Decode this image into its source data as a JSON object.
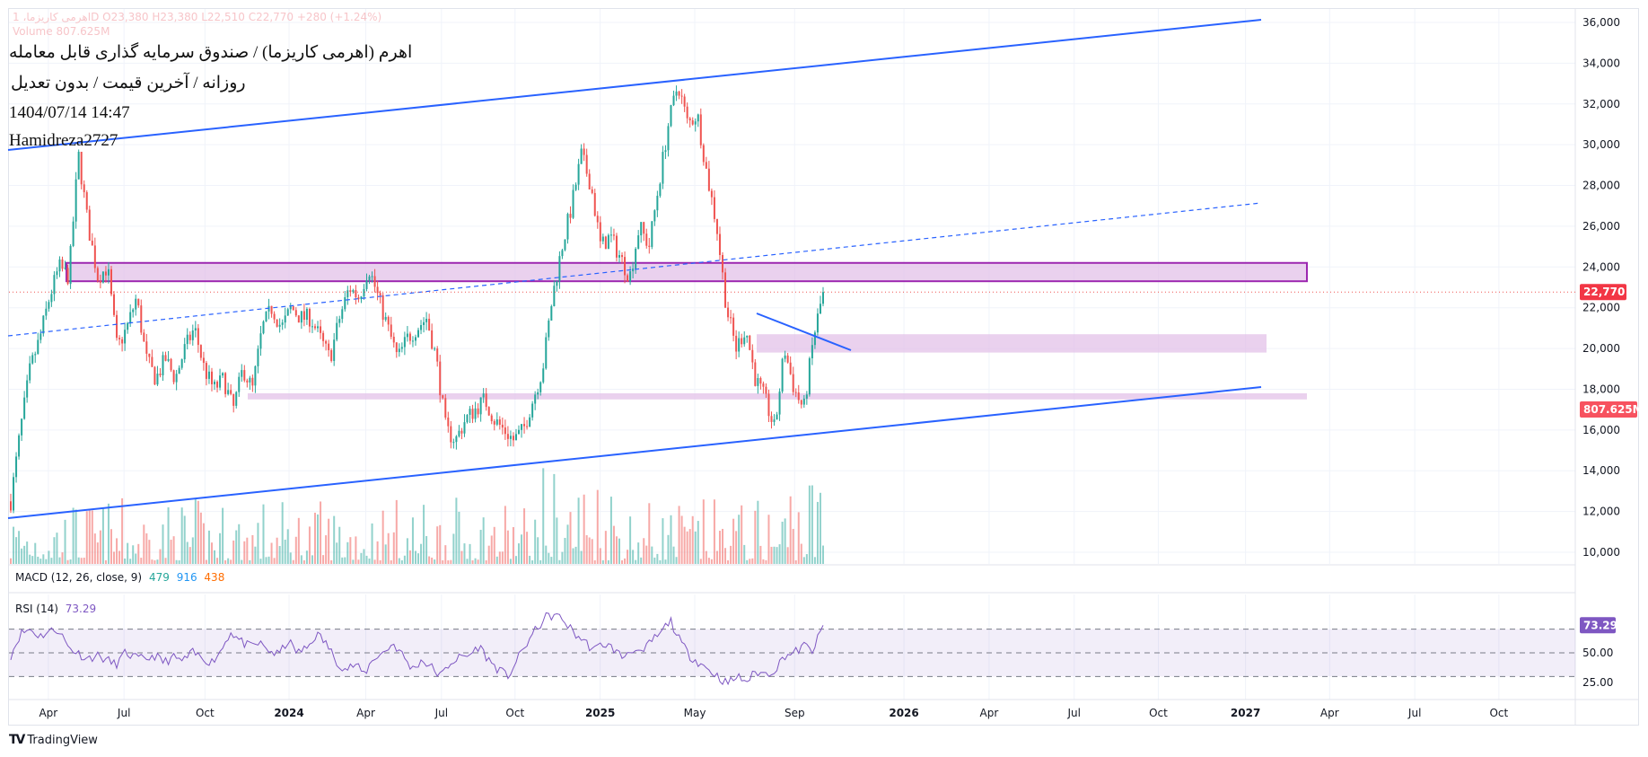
{
  "header": {
    "ohlc_line": "اهرمی کاریزما، 1D  O23,380  H23,380  L22,510  C22,770  +280 (+1.24%)",
    "volume_line": "Volume 807.625M",
    "title": "اهرم (اهرمی کاریزما) / صندوق سرمایه گذاری قابل معامله",
    "subtitle": "روزانه / آخرین قیمت / بدون تعدیل",
    "datetime": "1404/07/14 14:47",
    "author": "Hamidreza2727"
  },
  "indicators": {
    "macd": {
      "label": "MACD (12, 26, close, 9)",
      "v1": "479",
      "v2": "916",
      "v3": "438"
    },
    "rsi": {
      "label": "RSI (14)",
      "value": "73.29"
    }
  },
  "colors": {
    "up": "#26a69a",
    "down": "#ef5350",
    "line": "#2962ff",
    "rsi": "#7e57c2",
    "zone": "#e1bee7",
    "box": "#9c27b0"
  },
  "chart_data": {
    "type": "candlestick",
    "price_axis": {
      "ticks": [
        "36,000",
        "34,000",
        "32,000",
        "30,000",
        "28,000",
        "26,000",
        "24,000",
        "22,000",
        "20,000",
        "18,000",
        "16,000",
        "14,000",
        "12,000",
        "10,000"
      ],
      "range": [
        10000,
        36000
      ]
    },
    "last_price_label": "22,770",
    "last_price": 22770,
    "volume_label": "807.625M",
    "rsi_axis": {
      "ticks": [
        "50.00",
        "25.00"
      ],
      "bands": [
        70,
        30
      ],
      "last_label": "73.29",
      "last": 73.29
    },
    "time_axis": [
      {
        "label": "Apr",
        "bold": false
      },
      {
        "label": "Jul",
        "bold": false
      },
      {
        "label": "Oct",
        "bold": false
      },
      {
        "label": "2024",
        "bold": true
      },
      {
        "label": "Apr",
        "bold": false
      },
      {
        "label": "Jul",
        "bold": false
      },
      {
        "label": "Oct",
        "bold": false
      },
      {
        "label": "2025",
        "bold": true
      },
      {
        "label": "May",
        "bold": false
      },
      {
        "label": "Sep",
        "bold": false
      },
      {
        "label": "2026",
        "bold": true
      },
      {
        "label": "Apr",
        "bold": false
      },
      {
        "label": "Jul",
        "bold": false
      },
      {
        "label": "Oct",
        "bold": false
      },
      {
        "label": "2027",
        "bold": true
      },
      {
        "label": "Apr",
        "bold": false
      },
      {
        "label": "Jul",
        "bold": false
      },
      {
        "label": "Oct",
        "bold": false
      }
    ],
    "price_path": [
      12500,
      16000,
      19000,
      20500,
      22500,
      24000,
      23500,
      29500,
      26000,
      23500,
      24000,
      20000,
      21000,
      22500,
      19500,
      18500,
      19500,
      18500,
      20000,
      21000,
      19000,
      18000,
      18500,
      17000,
      19000,
      18000,
      21000,
      22000,
      21000,
      22000,
      21500,
      21500,
      20500,
      19500,
      21500,
      23000,
      22500,
      24000,
      22500,
      21000,
      19500,
      20500,
      21000,
      21500,
      19500,
      16000,
      15500,
      16500,
      17000,
      17500,
      16500,
      16000,
      15500,
      16000,
      17500,
      19000,
      22500,
      25000,
      27000,
      29500,
      28000,
      25000,
      25500,
      24500,
      23500,
      26000,
      25000,
      28000,
      31000,
      33000,
      31000,
      31500,
      28500,
      26000,
      22000,
      20000,
      21000,
      18500,
      17500,
      16000,
      20000,
      18000,
      17000,
      20500,
      22770
    ],
    "rsi_path": [
      48,
      66,
      70,
      64,
      68,
      70,
      55,
      50,
      45,
      48,
      44,
      40,
      50,
      46,
      44,
      48,
      42,
      46,
      43,
      50,
      46,
      42,
      52,
      68,
      60,
      55,
      58,
      52,
      48,
      60,
      50,
      54,
      66,
      58,
      44,
      36,
      40,
      32,
      46,
      50,
      58,
      48,
      36,
      44,
      38,
      30,
      42,
      46,
      48,
      56,
      44,
      36,
      30,
      44,
      58,
      70,
      80,
      82,
      76,
      66,
      60,
      52,
      58,
      54,
      46,
      54,
      48,
      60,
      66,
      78,
      60,
      48,
      42,
      36,
      30,
      24,
      30,
      26,
      34,
      32,
      36,
      48,
      50,
      56,
      52,
      73.29
    ],
    "annotations": [
      {
        "type": "trendline",
        "name": "upper-channel",
        "from_price": 30000,
        "to_price": 36200
      },
      {
        "type": "trendline",
        "name": "lower-channel",
        "from_price": 11700,
        "to_price": 18200
      },
      {
        "type": "trendline",
        "name": "mid-channel-dashed",
        "from_price": 20600,
        "to_price": 27200
      },
      {
        "type": "zone",
        "name": "resistance-zone",
        "low": 23300,
        "high": 24200
      },
      {
        "type": "zone",
        "name": "support-zone-1",
        "low": 19800,
        "high": 20700
      },
      {
        "type": "zone",
        "name": "support-zone-2",
        "low": 17500,
        "high": 17800
      }
    ]
  },
  "footer": {
    "brand": "TradingView"
  }
}
